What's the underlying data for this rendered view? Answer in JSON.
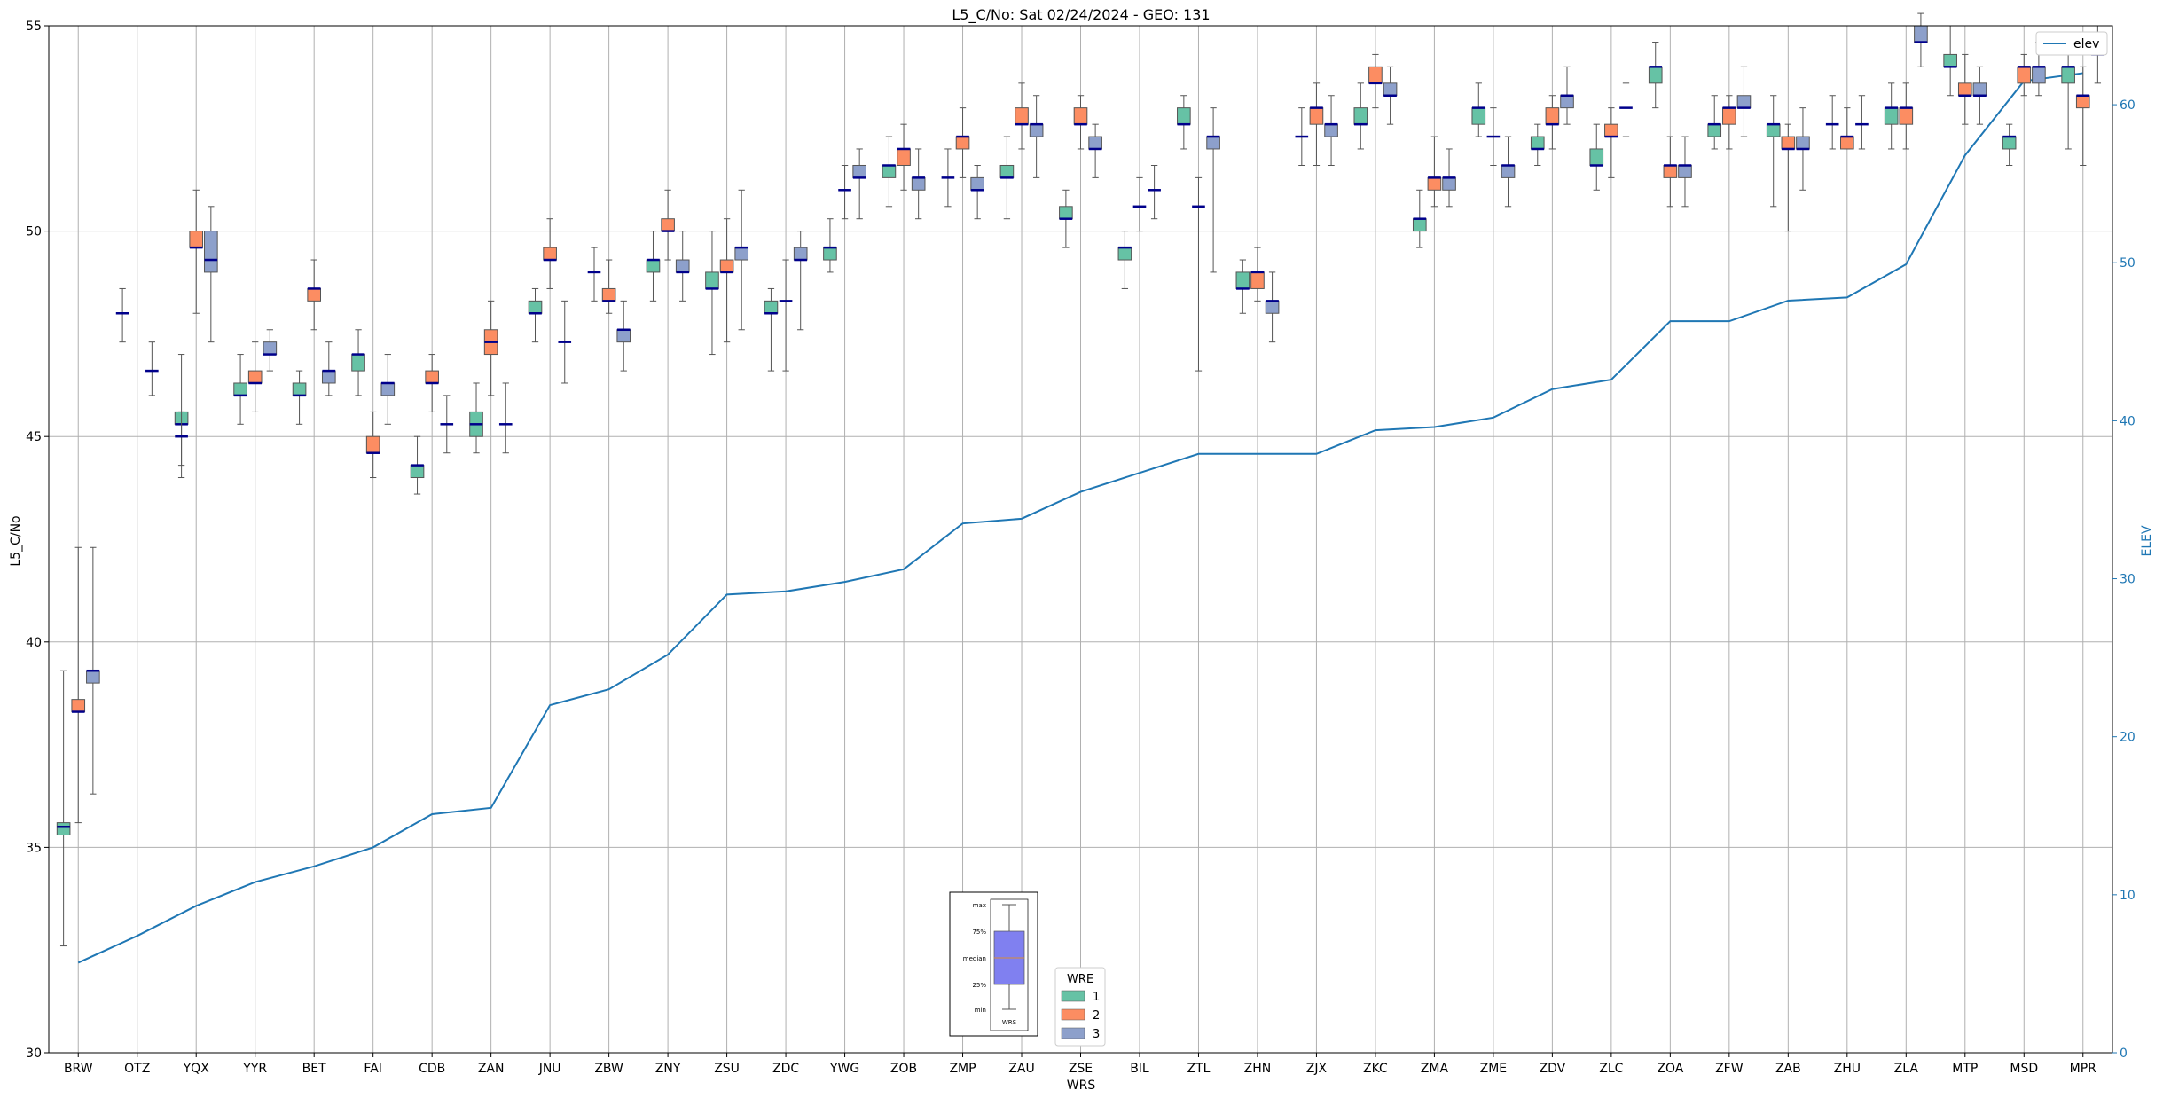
{
  "chart_data": {
    "type": "box",
    "title": "L5_C/No: Sat 02/24/2024 - GEO: 131",
    "xlabel": "WRS",
    "ylabel": "L5_C/No",
    "y2label": "ELEV",
    "ylim": [
      30,
      55
    ],
    "y2lim": [
      0,
      65
    ],
    "yticks": [
      30,
      35,
      40,
      45,
      50,
      55
    ],
    "y2ticks": [
      0,
      10,
      20,
      30,
      40,
      50,
      60
    ],
    "grid": true,
    "colors": {
      "wre1": "#66c2a5",
      "wre2": "#fc8d62",
      "wre3": "#8da0cb",
      "elev": "#1f77b4",
      "median": "#00008b"
    },
    "categories": [
      "BRW",
      "OTZ",
      "YQX",
      "YYR",
      "BET",
      "FAI",
      "CDB",
      "ZAN",
      "JNU",
      "ZBW",
      "ZNY",
      "ZSU",
      "ZDC",
      "YWG",
      "ZOB",
      "ZMP",
      "ZAU",
      "ZSE",
      "BIL",
      "ZTL",
      "ZHN",
      "ZJX",
      "ZKC",
      "ZMA",
      "ZME",
      "ZDV",
      "ZLC",
      "ZOA",
      "ZFW",
      "ZAB",
      "ZHU",
      "ZLA",
      "MTP",
      "MSD",
      "MPR"
    ],
    "elev": {
      "name": "elev",
      "values": [
        5.7,
        7.4,
        9.3,
        10.8,
        11.8,
        13.0,
        15.1,
        15.5,
        22.0,
        23.0,
        25.2,
        29.0,
        29.2,
        29.8,
        30.6,
        33.5,
        33.8,
        35.5,
        36.7,
        37.9,
        37.9,
        37.9,
        39.4,
        39.6,
        40.2,
        42.0,
        42.6,
        46.3,
        46.3,
        47.6,
        47.8,
        49.9,
        56.8,
        61.5,
        62.0
      ]
    },
    "boxes": [
      {
        "cat": "BRW",
        "wre": 1,
        "min": 32.6,
        "q1": 35.3,
        "median": 35.5,
        "q3": 35.6,
        "max": 39.3
      },
      {
        "cat": "BRW",
        "wre": 2,
        "min": 35.6,
        "q1": 38.3,
        "median": 38.3,
        "q3": 38.6,
        "max": 42.3
      },
      {
        "cat": "BRW",
        "wre": 3,
        "min": 36.3,
        "q1": 39.0,
        "median": 39.3,
        "q3": 39.3,
        "max": 42.3
      },
      {
        "cat": "OTZ",
        "wre": 1,
        "min": 47.3,
        "q1": 48.0,
        "median": 48.0,
        "q3": 48.0,
        "max": 48.6
      },
      {
        "cat": "OTZ",
        "wre": 3,
        "min": 46.0,
        "q1": 46.6,
        "median": 46.6,
        "q3": 46.6,
        "max": 47.3
      },
      {
        "cat": "YQX",
        "wre": 1,
        "min": 44.0,
        "q1": 45.3,
        "median": 45.3,
        "q3": 45.6,
        "max": 47.0
      },
      {
        "cat": "YQX",
        "wre": 2,
        "min": 48.0,
        "q1": 49.6,
        "median": 49.6,
        "q3": 50.0,
        "max": 51.0
      },
      {
        "cat": "YQX",
        "wre": 3,
        "min": 47.3,
        "q1": 49.0,
        "median": 49.3,
        "q3": 50.0,
        "max": 50.6
      },
      {
        "cat": "YQX",
        "wre": 0,
        "min": 44.3,
        "q1": 45.0,
        "median": 45.0,
        "q3": 45.0,
        "max": 45.6
      },
      {
        "cat": "YYR",
        "wre": 1,
        "min": 45.3,
        "q1": 46.0,
        "median": 46.0,
        "q3": 46.3,
        "max": 47.0
      },
      {
        "cat": "YYR",
        "wre": 2,
        "min": 45.6,
        "q1": 46.3,
        "median": 46.3,
        "q3": 46.6,
        "max": 47.3
      },
      {
        "cat": "YYR",
        "wre": 3,
        "min": 46.6,
        "q1": 47.0,
        "median": 47.0,
        "q3": 47.3,
        "max": 47.6
      },
      {
        "cat": "BET",
        "wre": 1,
        "min": 45.3,
        "q1": 46.0,
        "median": 46.0,
        "q3": 46.3,
        "max": 46.6
      },
      {
        "cat": "BET",
        "wre": 2,
        "min": 47.6,
        "q1": 48.3,
        "median": 48.6,
        "q3": 48.6,
        "max": 49.3
      },
      {
        "cat": "BET",
        "wre": 3,
        "min": 46.0,
        "q1": 46.3,
        "median": 46.6,
        "q3": 46.6,
        "max": 47.3
      },
      {
        "cat": "FAI",
        "wre": 1,
        "min": 46.0,
        "q1": 46.6,
        "median": 47.0,
        "q3": 47.0,
        "max": 47.6
      },
      {
        "cat": "FAI",
        "wre": 2,
        "min": 44.0,
        "q1": 44.6,
        "median": 44.6,
        "q3": 45.0,
        "max": 45.6
      },
      {
        "cat": "FAI",
        "wre": 3,
        "min": 45.3,
        "q1": 46.0,
        "median": 46.3,
        "q3": 46.3,
        "max": 47.0
      },
      {
        "cat": "CDB",
        "wre": 1,
        "min": 43.6,
        "q1": 44.0,
        "median": 44.3,
        "q3": 44.3,
        "max": 45.0
      },
      {
        "cat": "CDB",
        "wre": 2,
        "min": 45.6,
        "q1": 46.3,
        "median": 46.3,
        "q3": 46.6,
        "max": 47.0
      },
      {
        "cat": "CDB",
        "wre": 3,
        "min": 44.6,
        "q1": 45.3,
        "median": 45.3,
        "q3": 45.3,
        "max": 46.0
      },
      {
        "cat": "ZAN",
        "wre": 1,
        "min": 44.6,
        "q1": 45.0,
        "median": 45.3,
        "q3": 45.6,
        "max": 46.3
      },
      {
        "cat": "ZAN",
        "wre": 2,
        "min": 46.0,
        "q1": 47.0,
        "median": 47.3,
        "q3": 47.6,
        "max": 48.3
      },
      {
        "cat": "ZAN",
        "wre": 3,
        "min": 44.6,
        "q1": 45.3,
        "median": 45.3,
        "q3": 45.3,
        "max": 46.3
      },
      {
        "cat": "JNU",
        "wre": 1,
        "min": 47.3,
        "q1": 48.0,
        "median": 48.0,
        "q3": 48.3,
        "max": 48.6
      },
      {
        "cat": "JNU",
        "wre": 2,
        "min": 48.6,
        "q1": 49.3,
        "median": 49.3,
        "q3": 49.6,
        "max": 50.3
      },
      {
        "cat": "JNU",
        "wre": 3,
        "min": 46.3,
        "q1": 47.3,
        "median": 47.3,
        "q3": 47.3,
        "max": 48.3
      },
      {
        "cat": "ZBW",
        "wre": 1,
        "min": 48.3,
        "q1": 49.0,
        "median": 49.0,
        "q3": 49.0,
        "max": 49.6
      },
      {
        "cat": "ZBW",
        "wre": 2,
        "min": 48.0,
        "q1": 48.3,
        "median": 48.3,
        "q3": 48.6,
        "max": 49.3
      },
      {
        "cat": "ZBW",
        "wre": 3,
        "min": 46.6,
        "q1": 47.3,
        "median": 47.6,
        "q3": 47.6,
        "max": 48.3
      },
      {
        "cat": "ZNY",
        "wre": 1,
        "min": 48.3,
        "q1": 49.0,
        "median": 49.3,
        "q3": 49.3,
        "max": 50.0
      },
      {
        "cat": "ZNY",
        "wre": 2,
        "min": 49.3,
        "q1": 50.0,
        "median": 50.0,
        "q3": 50.3,
        "max": 51.0
      },
      {
        "cat": "ZNY",
        "wre": 3,
        "min": 48.3,
        "q1": 49.0,
        "median": 49.0,
        "q3": 49.3,
        "max": 50.0
      },
      {
        "cat": "ZSU",
        "wre": 1,
        "min": 47.0,
        "q1": 48.6,
        "median": 48.6,
        "q3": 49.0,
        "max": 50.0
      },
      {
        "cat": "ZSU",
        "wre": 2,
        "min": 47.3,
        "q1": 49.0,
        "median": 49.0,
        "q3": 49.3,
        "max": 50.3
      },
      {
        "cat": "ZSU",
        "wre": 3,
        "min": 47.6,
        "q1": 49.3,
        "median": 49.6,
        "q3": 49.6,
        "max": 51.0
      },
      {
        "cat": "ZDC",
        "wre": 1,
        "min": 46.6,
        "q1": 48.0,
        "median": 48.0,
        "q3": 48.3,
        "max": 48.6
      },
      {
        "cat": "ZDC",
        "wre": 2,
        "min": 46.6,
        "q1": 48.3,
        "median": 48.3,
        "q3": 48.3,
        "max": 49.3
      },
      {
        "cat": "ZDC",
        "wre": 3,
        "min": 47.6,
        "q1": 49.3,
        "median": 49.3,
        "q3": 49.6,
        "max": 50.0
      },
      {
        "cat": "YWG",
        "wre": 1,
        "min": 49.0,
        "q1": 49.3,
        "median": 49.6,
        "q3": 49.6,
        "max": 50.3
      },
      {
        "cat": "YWG",
        "wre": 2,
        "min": 50.3,
        "q1": 51.0,
        "median": 51.0,
        "q3": 51.0,
        "max": 51.6
      },
      {
        "cat": "YWG",
        "wre": 3,
        "min": 50.3,
        "q1": 51.3,
        "median": 51.3,
        "q3": 51.6,
        "max": 52.0
      },
      {
        "cat": "ZOB",
        "wre": 1,
        "min": 50.6,
        "q1": 51.3,
        "median": 51.6,
        "q3": 51.6,
        "max": 52.3
      },
      {
        "cat": "ZOB",
        "wre": 2,
        "min": 51.0,
        "q1": 51.6,
        "median": 52.0,
        "q3": 52.0,
        "max": 52.6
      },
      {
        "cat": "ZOB",
        "wre": 3,
        "min": 50.3,
        "q1": 51.0,
        "median": 51.3,
        "q3": 51.3,
        "max": 52.0
      },
      {
        "cat": "ZMP",
        "wre": 1,
        "min": 50.6,
        "q1": 51.3,
        "median": 51.3,
        "q3": 51.3,
        "max": 52.0
      },
      {
        "cat": "ZMP",
        "wre": 2,
        "min": 51.3,
        "q1": 52.0,
        "median": 52.3,
        "q3": 52.3,
        "max": 53.0
      },
      {
        "cat": "ZMP",
        "wre": 3,
        "min": 50.3,
        "q1": 51.0,
        "median": 51.0,
        "q3": 51.3,
        "max": 51.6
      },
      {
        "cat": "ZAU",
        "wre": 1,
        "min": 50.3,
        "q1": 51.3,
        "median": 51.3,
        "q3": 51.6,
        "max": 52.3
      },
      {
        "cat": "ZAU",
        "wre": 2,
        "min": 52.0,
        "q1": 52.6,
        "median": 52.6,
        "q3": 53.0,
        "max": 53.6
      },
      {
        "cat": "ZAU",
        "wre": 3,
        "min": 51.3,
        "q1": 52.3,
        "median": 52.6,
        "q3": 52.6,
        "max": 53.3
      },
      {
        "cat": "ZSE",
        "wre": 1,
        "min": 49.6,
        "q1": 50.3,
        "median": 50.3,
        "q3": 50.6,
        "max": 51.0
      },
      {
        "cat": "ZSE",
        "wre": 2,
        "min": 52.0,
        "q1": 52.6,
        "median": 52.6,
        "q3": 53.0,
        "max": 53.3
      },
      {
        "cat": "ZSE",
        "wre": 3,
        "min": 51.3,
        "q1": 52.0,
        "median": 52.0,
        "q3": 52.3,
        "max": 52.6
      },
      {
        "cat": "BIL",
        "wre": 1,
        "min": 48.6,
        "q1": 49.3,
        "median": 49.6,
        "q3": 49.6,
        "max": 50.0
      },
      {
        "cat": "BIL",
        "wre": 2,
        "min": 50.0,
        "q1": 50.6,
        "median": 50.6,
        "q3": 50.6,
        "max": 51.3
      },
      {
        "cat": "BIL",
        "wre": 3,
        "min": 50.3,
        "q1": 51.0,
        "median": 51.0,
        "q3": 51.0,
        "max": 51.6
      },
      {
        "cat": "ZTL",
        "wre": 1,
        "min": 52.0,
        "q1": 52.6,
        "median": 52.6,
        "q3": 53.0,
        "max": 53.3
      },
      {
        "cat": "ZTL",
        "wre": 2,
        "min": 46.6,
        "q1": 50.6,
        "median": 50.6,
        "q3": 50.6,
        "max": 51.3
      },
      {
        "cat": "ZTL",
        "wre": 3,
        "min": 49.0,
        "q1": 52.0,
        "median": 52.3,
        "q3": 52.3,
        "max": 53.0
      },
      {
        "cat": "ZHN",
        "wre": 1,
        "min": 48.0,
        "q1": 48.6,
        "median": 48.6,
        "q3": 49.0,
        "max": 49.3
      },
      {
        "cat": "ZHN",
        "wre": 2,
        "min": 48.3,
        "q1": 48.6,
        "median": 49.0,
        "q3": 49.0,
        "max": 49.6
      },
      {
        "cat": "ZHN",
        "wre": 3,
        "min": 47.3,
        "q1": 48.0,
        "median": 48.3,
        "q3": 48.3,
        "max": 49.0
      },
      {
        "cat": "ZJX",
        "wre": 1,
        "min": 51.6,
        "q1": 52.3,
        "median": 52.3,
        "q3": 52.3,
        "max": 53.0
      },
      {
        "cat": "ZJX",
        "wre": 2,
        "min": 51.6,
        "q1": 52.6,
        "median": 53.0,
        "q3": 53.0,
        "max": 53.6
      },
      {
        "cat": "ZJX",
        "wre": 3,
        "min": 51.6,
        "q1": 52.3,
        "median": 52.6,
        "q3": 52.6,
        "max": 53.3
      },
      {
        "cat": "ZKC",
        "wre": 1,
        "min": 52.0,
        "q1": 52.6,
        "median": 52.6,
        "q3": 53.0,
        "max": 53.6
      },
      {
        "cat": "ZKC",
        "wre": 2,
        "min": 53.0,
        "q1": 53.6,
        "median": 53.6,
        "q3": 54.0,
        "max": 54.3
      },
      {
        "cat": "ZKC",
        "wre": 3,
        "min": 52.6,
        "q1": 53.3,
        "median": 53.3,
        "q3": 53.6,
        "max": 54.0
      },
      {
        "cat": "ZMA",
        "wre": 1,
        "min": 49.6,
        "q1": 50.0,
        "median": 50.3,
        "q3": 50.3,
        "max": 51.0
      },
      {
        "cat": "ZMA",
        "wre": 2,
        "min": 50.6,
        "q1": 51.0,
        "median": 51.3,
        "q3": 51.3,
        "max": 52.3
      },
      {
        "cat": "ZMA",
        "wre": 3,
        "min": 50.6,
        "q1": 51.0,
        "median": 51.3,
        "q3": 51.3,
        "max": 52.0
      },
      {
        "cat": "ZME",
        "wre": 1,
        "min": 52.3,
        "q1": 52.6,
        "median": 53.0,
        "q3": 53.0,
        "max": 53.6
      },
      {
        "cat": "ZME",
        "wre": 2,
        "min": 51.6,
        "q1": 52.3,
        "median": 52.3,
        "q3": 52.3,
        "max": 53.0
      },
      {
        "cat": "ZME",
        "wre": 3,
        "min": 50.6,
        "q1": 51.3,
        "median": 51.6,
        "q3": 51.6,
        "max": 52.3
      },
      {
        "cat": "ZDV",
        "wre": 1,
        "min": 51.6,
        "q1": 52.0,
        "median": 52.0,
        "q3": 52.3,
        "max": 52.6
      },
      {
        "cat": "ZDV",
        "wre": 2,
        "min": 52.0,
        "q1": 52.6,
        "median": 52.6,
        "q3": 53.0,
        "max": 53.3
      },
      {
        "cat": "ZDV",
        "wre": 3,
        "min": 52.6,
        "q1": 53.0,
        "median": 53.3,
        "q3": 53.3,
        "max": 54.0
      },
      {
        "cat": "ZLC",
        "wre": 1,
        "min": 51.0,
        "q1": 51.6,
        "median": 51.6,
        "q3": 52.0,
        "max": 52.6
      },
      {
        "cat": "ZLC",
        "wre": 2,
        "min": 51.3,
        "q1": 52.3,
        "median": 52.3,
        "q3": 52.6,
        "max": 53.0
      },
      {
        "cat": "ZLC",
        "wre": 3,
        "min": 52.3,
        "q1": 53.0,
        "median": 53.0,
        "q3": 53.0,
        "max": 53.6
      },
      {
        "cat": "ZOA",
        "wre": 1,
        "min": 53.0,
        "q1": 53.6,
        "median": 54.0,
        "q3": 54.0,
        "max": 54.6
      },
      {
        "cat": "ZOA",
        "wre": 2,
        "min": 50.6,
        "q1": 51.3,
        "median": 51.6,
        "q3": 51.6,
        "max": 52.3
      },
      {
        "cat": "ZOA",
        "wre": 3,
        "min": 50.6,
        "q1": 51.3,
        "median": 51.6,
        "q3": 51.6,
        "max": 52.3
      },
      {
        "cat": "ZFW",
        "wre": 1,
        "min": 52.0,
        "q1": 52.3,
        "median": 52.6,
        "q3": 52.6,
        "max": 53.3
      },
      {
        "cat": "ZFW",
        "wre": 2,
        "min": 52.0,
        "q1": 52.6,
        "median": 53.0,
        "q3": 53.0,
        "max": 53.3
      },
      {
        "cat": "ZFW",
        "wre": 3,
        "min": 52.3,
        "q1": 53.0,
        "median": 53.0,
        "q3": 53.3,
        "max": 54.0
      },
      {
        "cat": "ZAB",
        "wre": 1,
        "min": 50.6,
        "q1": 52.3,
        "median": 52.6,
        "q3": 52.6,
        "max": 53.3
      },
      {
        "cat": "ZAB",
        "wre": 2,
        "min": 50.0,
        "q1": 52.0,
        "median": 52.0,
        "q3": 52.3,
        "max": 52.6
      },
      {
        "cat": "ZAB",
        "wre": 3,
        "min": 51.0,
        "q1": 52.0,
        "median": 52.0,
        "q3": 52.3,
        "max": 53.0
      },
      {
        "cat": "ZHU",
        "wre": 1,
        "min": 52.0,
        "q1": 52.6,
        "median": 52.6,
        "q3": 52.6,
        "max": 53.3
      },
      {
        "cat": "ZHU",
        "wre": 2,
        "min": 52.0,
        "q1": 52.0,
        "median": 52.3,
        "q3": 52.3,
        "max": 53.0
      },
      {
        "cat": "ZHU",
        "wre": 3,
        "min": 52.0,
        "q1": 52.6,
        "median": 52.6,
        "q3": 52.6,
        "max": 53.3
      },
      {
        "cat": "ZLA",
        "wre": 1,
        "min": 52.0,
        "q1": 52.6,
        "median": 53.0,
        "q3": 53.0,
        "max": 53.6
      },
      {
        "cat": "ZLA",
        "wre": 2,
        "min": 52.0,
        "q1": 52.6,
        "median": 53.0,
        "q3": 53.0,
        "max": 53.6
      },
      {
        "cat": "ZLA",
        "wre": 3,
        "min": 54.0,
        "q1": 54.6,
        "median": 54.6,
        "q3": 55.0,
        "max": 55.3
      },
      {
        "cat": "MTP",
        "wre": 1,
        "min": 53.3,
        "q1": 54.0,
        "median": 54.0,
        "q3": 54.3,
        "max": 55.0
      },
      {
        "cat": "MTP",
        "wre": 2,
        "min": 52.6,
        "q1": 53.3,
        "median": 53.3,
        "q3": 53.6,
        "max": 54.3
      },
      {
        "cat": "MTP",
        "wre": 3,
        "min": 52.6,
        "q1": 53.3,
        "median": 53.3,
        "q3": 53.6,
        "max": 54.0
      },
      {
        "cat": "MSD",
        "wre": 1,
        "min": 51.6,
        "q1": 52.0,
        "median": 52.3,
        "q3": 52.3,
        "max": 52.6
      },
      {
        "cat": "MSD",
        "wre": 2,
        "min": 53.3,
        "q1": 53.6,
        "median": 54.0,
        "q3": 54.0,
        "max": 54.3
      },
      {
        "cat": "MSD",
        "wre": 3,
        "min": 53.3,
        "q1": 53.6,
        "median": 54.0,
        "q3": 54.0,
        "max": 54.6
      },
      {
        "cat": "MPR",
        "wre": 1,
        "min": 52.0,
        "q1": 53.6,
        "median": 54.0,
        "q3": 54.0,
        "max": 54.6
      },
      {
        "cat": "MPR",
        "wre": 2,
        "min": 51.6,
        "q1": 53.0,
        "median": 53.3,
        "q3": 53.3,
        "max": 54.0
      },
      {
        "cat": "MPR",
        "wre": 3,
        "min": 53.6,
        "q1": 54.3,
        "median": 54.3,
        "q3": 54.6,
        "max": 55.0
      }
    ],
    "legend_wre": {
      "title": "WRE",
      "entries": [
        {
          "label": "1",
          "color": "#66c2a5"
        },
        {
          "label": "2",
          "color": "#fc8d62"
        },
        {
          "label": "3",
          "color": "#8da0cb"
        }
      ],
      "placement": "bottom-center"
    },
    "legend_elev": {
      "label": "elev",
      "placement": "top-right"
    },
    "box_key": {
      "labels": [
        "max",
        "75%",
        "median",
        "25%",
        "min"
      ],
      "xlabel": "WRS",
      "placement": "bottom-center"
    }
  }
}
